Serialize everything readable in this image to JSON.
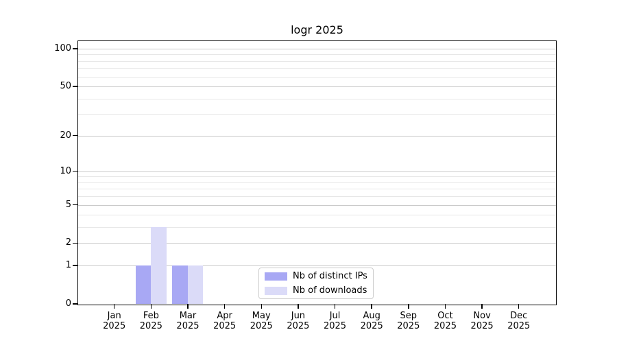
{
  "chart_data": {
    "type": "bar",
    "title": "logr 2025",
    "categories": [
      "Jan",
      "Feb",
      "Mar",
      "Apr",
      "May",
      "Jun",
      "Jul",
      "Aug",
      "Sep",
      "Oct",
      "Nov",
      "Dec"
    ],
    "category_year": "2025",
    "series": [
      {
        "name": "Nb of distinct IPs",
        "color": "#a8a8f4",
        "values": [
          0,
          1,
          1,
          0,
          0,
          0,
          0,
          0,
          0,
          0,
          0,
          0
        ]
      },
      {
        "name": "Nb of downloads",
        "color": "#dbdbf8",
        "values": [
          0,
          3,
          1,
          0,
          0,
          0,
          0,
          0,
          0,
          0,
          0,
          0
        ]
      }
    ],
    "y_axis": {
      "scale": "log1p",
      "major_ticks": [
        0,
        1,
        2,
        5,
        10,
        20,
        50,
        100
      ],
      "minor_ticks": [
        3,
        4,
        6,
        7,
        8,
        9,
        30,
        40,
        60,
        70,
        80,
        90
      ],
      "range": [
        0,
        115
      ]
    },
    "x_axis": {
      "tick_count": 12
    },
    "grid": {
      "orientation": "horizontal",
      "major_color": "#c9c9c9",
      "minor_color": "#e7e7e7"
    },
    "legend": {
      "position": "inside-lower-center"
    },
    "colors": {
      "background": "#ffffff",
      "axis": "#000000",
      "text": "#000000"
    }
  }
}
